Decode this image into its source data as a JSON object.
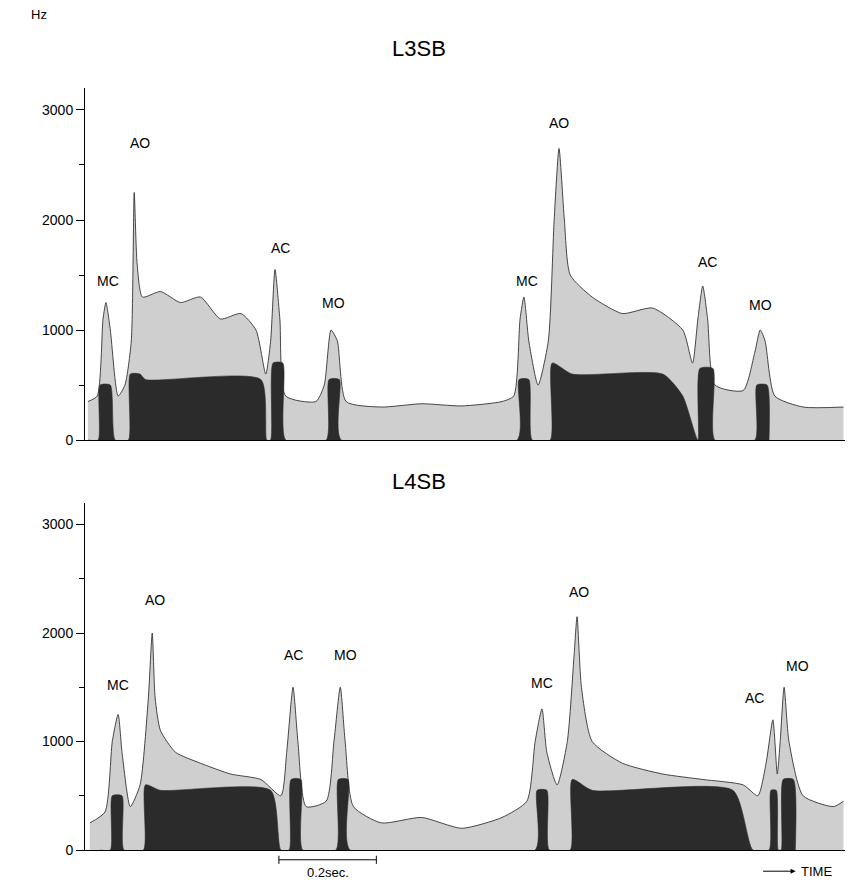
{
  "chart_data": [
    {
      "type": "area",
      "title": "L3SB",
      "ylabel": "Hz",
      "xlim": [
        0,
        1.56
      ],
      "ylim": [
        0,
        3200
      ],
      "yticks": [
        0,
        1000,
        2000,
        3000
      ],
      "grid": false,
      "tick_labels": "y",
      "series": [
        {
          "color": "#cfcfcf",
          "x": [
            0.006,
            0.025,
            0.037,
            0.043,
            0.052,
            0.068,
            0.082,
            0.095,
            0.101,
            0.107,
            0.118,
            0.155,
            0.196,
            0.237,
            0.278,
            0.32,
            0.351,
            0.371,
            0.381,
            0.39,
            0.4,
            0.412,
            0.474,
            0.491,
            0.505,
            0.518,
            0.536,
            0.608,
            0.691,
            0.773,
            0.856,
            0.88,
            0.893,
            0.901,
            0.911,
            0.93,
            0.951,
            0.963,
            0.973,
            0.984,
            0.996,
            1.041,
            1.103,
            1.165,
            1.227,
            1.247,
            1.258,
            1.268,
            1.278,
            1.293,
            1.351,
            1.375,
            1.386,
            1.396,
            1.416,
            1.474,
            1.557
          ],
          "values": [
            350,
            400,
            1100,
            1250,
            1000,
            400,
            500,
            900,
            2250,
            1600,
            1300,
            1350,
            1250,
            1300,
            1100,
            1150,
            1000,
            600,
            900,
            1550,
            1100,
            400,
            350,
            500,
            1000,
            900,
            350,
            300,
            330,
            310,
            350,
            400,
            1100,
            1300,
            900,
            500,
            900,
            2000,
            2650,
            2000,
            1500,
            1300,
            1150,
            1200,
            1000,
            700,
            1100,
            1400,
            1100,
            500,
            450,
            800,
            1000,
            900,
            400,
            300,
            300
          ]
        },
        {
          "color": "#2b2b2b",
          "x": [
            0.006,
            0.027,
            0.031,
            0.052,
            0.062,
            0.089,
            0.093,
            0.113,
            0.124,
            0.361,
            0.373,
            0.381,
            0.386,
            0.406,
            0.412,
            0.495,
            0.501,
            0.522,
            0.526,
            0.887,
            0.891,
            0.911,
            0.918,
            0.955,
            0.959,
            1.0,
            1.186,
            1.227,
            1.258,
            1.262,
            1.289,
            1.293,
            1.375,
            1.379,
            1.4,
            1.404
          ],
          "values": [
            0,
            0,
            500,
            500,
            0,
            0,
            600,
            600,
            550,
            550,
            0,
            0,
            700,
            700,
            0,
            0,
            550,
            550,
            0,
            0,
            550,
            550,
            0,
            0,
            700,
            600,
            600,
            400,
            0,
            650,
            650,
            0,
            0,
            500,
            500,
            0
          ]
        }
      ],
      "annotations": [
        {
          "text": "MC",
          "x": 0.047,
          "y": 1450
        },
        {
          "text": "AO",
          "x": 0.113,
          "y": 2700
        },
        {
          "text": "AC",
          "x": 0.402,
          "y": 1750
        },
        {
          "text": "MO",
          "x": 0.511,
          "y": 1250
        },
        {
          "text": "MC",
          "x": 0.907,
          "y": 1450
        },
        {
          "text": "AO",
          "x": 0.973,
          "y": 2880
        },
        {
          "text": "AC",
          "x": 1.278,
          "y": 1620
        },
        {
          "text": "MO",
          "x": 1.386,
          "y": 1230
        }
      ]
    },
    {
      "type": "area",
      "title": "L4SB",
      "xlabel": "TIME",
      "xlim": [
        0,
        1.56
      ],
      "ylim": [
        0,
        3200
      ],
      "yticks": [
        0,
        1000,
        2000,
        3000
      ],
      "grid": false,
      "tick_labels": "y",
      "scale_bar": {
        "x": 0.398,
        "length": 0.2,
        "label": "0.2sec."
      },
      "series": [
        {
          "color": "#cfcfcf",
          "x": [
            0.01,
            0.041,
            0.056,
            0.068,
            0.076,
            0.093,
            0.113,
            0.13,
            0.138,
            0.144,
            0.155,
            0.186,
            0.237,
            0.299,
            0.361,
            0.402,
            0.414,
            0.427,
            0.437,
            0.454,
            0.495,
            0.511,
            0.524,
            0.534,
            0.551,
            0.608,
            0.691,
            0.773,
            0.856,
            0.907,
            0.924,
            0.938,
            0.948,
            0.969,
            0.99,
            1.004,
            1.01,
            1.019,
            1.041,
            1.103,
            1.186,
            1.268,
            1.351,
            1.381,
            1.398,
            1.412,
            1.421,
            1.427,
            1.435,
            1.445,
            1.474,
            1.536,
            1.557
          ],
          "values": [
            250,
            350,
            1000,
            1250,
            900,
            400,
            600,
            1400,
            2000,
            1400,
            1100,
            900,
            800,
            700,
            650,
            500,
            900,
            1500,
            1000,
            400,
            450,
            1000,
            1500,
            1000,
            400,
            250,
            300,
            200,
            300,
            450,
            1000,
            1300,
            900,
            600,
            1000,
            1800,
            2150,
            1500,
            1000,
            800,
            700,
            650,
            600,
            500,
            800,
            1200,
            700,
            1000,
            1500,
            1000,
            500,
            400,
            450
          ]
        },
        {
          "color": "#2b2b2b",
          "x": [
            0.031,
            0.052,
            0.056,
            0.076,
            0.08,
            0.12,
            0.124,
            0.155,
            0.381,
            0.402,
            0.419,
            0.423,
            0.443,
            0.447,
            0.515,
            0.52,
            0.54,
            0.544,
            0.924,
            0.928,
            0.948,
            0.953,
            0.996,
            1.0,
            1.041,
            1.33,
            1.371,
            1.404,
            1.408,
            1.419,
            1.423,
            1.429,
            1.433,
            1.454,
            1.458
          ],
          "values": [
            0,
            0,
            500,
            500,
            0,
            0,
            600,
            550,
            550,
            0,
            0,
            650,
            650,
            0,
            0,
            650,
            650,
            0,
            0,
            550,
            550,
            0,
            0,
            650,
            550,
            550,
            0,
            0,
            550,
            550,
            0,
            0,
            650,
            650,
            0
          ]
        }
      ],
      "annotations": [
        {
          "text": "MC",
          "x": 0.068,
          "y": 1520
        },
        {
          "text": "AO",
          "x": 0.144,
          "y": 2300
        },
        {
          "text": "AC",
          "x": 0.427,
          "y": 1800
        },
        {
          "text": "MO",
          "x": 0.534,
          "y": 1800
        },
        {
          "text": "MC",
          "x": 0.938,
          "y": 1540
        },
        {
          "text": "AO",
          "x": 1.014,
          "y": 2380
        },
        {
          "text": "AC",
          "x": 1.375,
          "y": 1400
        },
        {
          "text": "MO",
          "x": 1.462,
          "y": 1700
        }
      ]
    }
  ]
}
